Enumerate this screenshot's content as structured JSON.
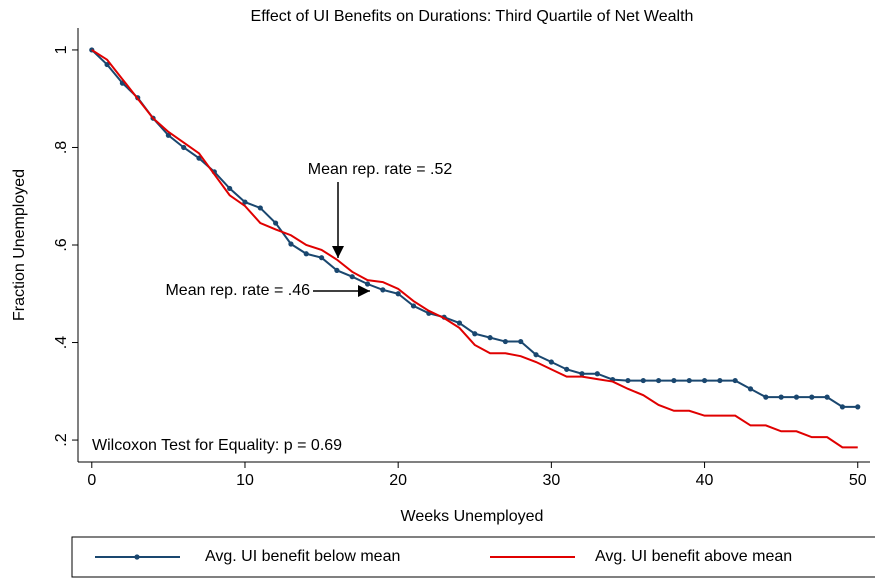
{
  "chart_data": {
    "type": "line",
    "title": "Effect of UI Benefits on Durations: Third Quartile of Net Wealth",
    "x_label": "Weeks Unemployed",
    "y_label": "Fraction Unemployed",
    "x": [
      0,
      1,
      2,
      3,
      4,
      5,
      6,
      7,
      8,
      9,
      10,
      11,
      12,
      13,
      14,
      15,
      16,
      17,
      18,
      19,
      20,
      21,
      22,
      23,
      24,
      25,
      26,
      27,
      28,
      29,
      30,
      31,
      32,
      33,
      34,
      35,
      36,
      37,
      38,
      39,
      40,
      41,
      42,
      43,
      44,
      45,
      46,
      47,
      48,
      49,
      50
    ],
    "series": [
      {
        "name": "Avg. UI benefit below mean",
        "color": "#1a476f",
        "markers": true,
        "values": [
          1.0,
          0.97,
          0.932,
          0.902,
          0.86,
          0.825,
          0.8,
          0.778,
          0.75,
          0.716,
          0.688,
          0.676,
          0.645,
          0.602,
          0.582,
          0.574,
          0.548,
          0.535,
          0.52,
          0.508,
          0.5,
          0.475,
          0.46,
          0.452,
          0.44,
          0.418,
          0.41,
          0.402,
          0.402,
          0.375,
          0.36,
          0.345,
          0.336,
          0.336,
          0.324,
          0.322,
          0.322,
          0.322,
          0.322,
          0.322,
          0.322,
          0.322,
          0.322,
          0.305,
          0.288,
          0.288,
          0.288,
          0.288,
          0.288,
          0.268,
          0.268
        ]
      },
      {
        "name": "Avg. UI benefit above mean",
        "color": "#e00000",
        "markers": false,
        "values": [
          1.0,
          0.98,
          0.94,
          0.9,
          0.86,
          0.832,
          0.81,
          0.788,
          0.745,
          0.702,
          0.68,
          0.645,
          0.632,
          0.62,
          0.6,
          0.59,
          0.57,
          0.545,
          0.528,
          0.524,
          0.51,
          0.485,
          0.465,
          0.45,
          0.43,
          0.395,
          0.378,
          0.378,
          0.372,
          0.36,
          0.345,
          0.33,
          0.33,
          0.325,
          0.32,
          0.305,
          0.292,
          0.272,
          0.26,
          0.26,
          0.25,
          0.25,
          0.25,
          0.23,
          0.23,
          0.218,
          0.218,
          0.206,
          0.206,
          0.185,
          0.185
        ]
      }
    ],
    "annotations": [
      "Mean rep. rate = .52",
      "Mean rep. rate = .46",
      "Wilcoxon Test for Equality: p = 0.69"
    ],
    "xlim": [
      -0.9,
      50.8
    ],
    "ylim": [
      0.155,
      1.045
    ],
    "xticks": [
      0,
      10,
      20,
      30,
      40,
      50
    ],
    "yticks": [
      {
        "value": 0.2,
        "label": ".2"
      },
      {
        "value": 0.4,
        "label": ".4"
      },
      {
        "value": 0.6,
        "label": ".6"
      },
      {
        "value": 0.8,
        "label": ".8"
      },
      1
    ],
    "grid": false,
    "legend": "bottom"
  }
}
